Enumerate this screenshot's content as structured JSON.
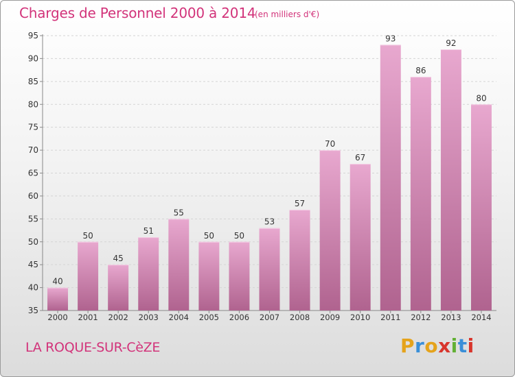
{
  "header": {
    "title": "Charges de Personnel 2000 à 2014",
    "unit": "(en milliers d'€)"
  },
  "footer": {
    "place": "LA ROQUE-SUR-CèZE",
    "logo_letters": [
      "P",
      "r",
      "o",
      "x",
      "i",
      "t",
      "i"
    ],
    "logo_colors": [
      "#e5a31b",
      "#3a8fd8",
      "#e5a31b",
      "#d8352c",
      "#62b034",
      "#3a8fd8",
      "#d8352c"
    ]
  },
  "colors": {
    "bar_light": "#e8a8cf",
    "bar_dark": "#b0638f",
    "text": "#333333",
    "accent": "#d2337a"
  },
  "chart_data": {
    "type": "bar",
    "title": "Charges de Personnel 2000 à 2014",
    "xlabel": "",
    "ylabel": "",
    "categories": [
      "2000",
      "2001",
      "2002",
      "2003",
      "2004",
      "2005",
      "2006",
      "2007",
      "2008",
      "2009",
      "2010",
      "2011",
      "2012",
      "2013",
      "2014"
    ],
    "values": [
      40,
      50,
      45,
      51,
      55,
      50,
      50,
      53,
      57,
      70,
      67,
      93,
      86,
      92,
      80
    ],
    "ylim": [
      35,
      95
    ],
    "yticks": [
      35,
      40,
      45,
      50,
      55,
      60,
      65,
      70,
      75,
      80,
      85,
      90,
      95
    ],
    "grid": true,
    "data_labels": true
  }
}
